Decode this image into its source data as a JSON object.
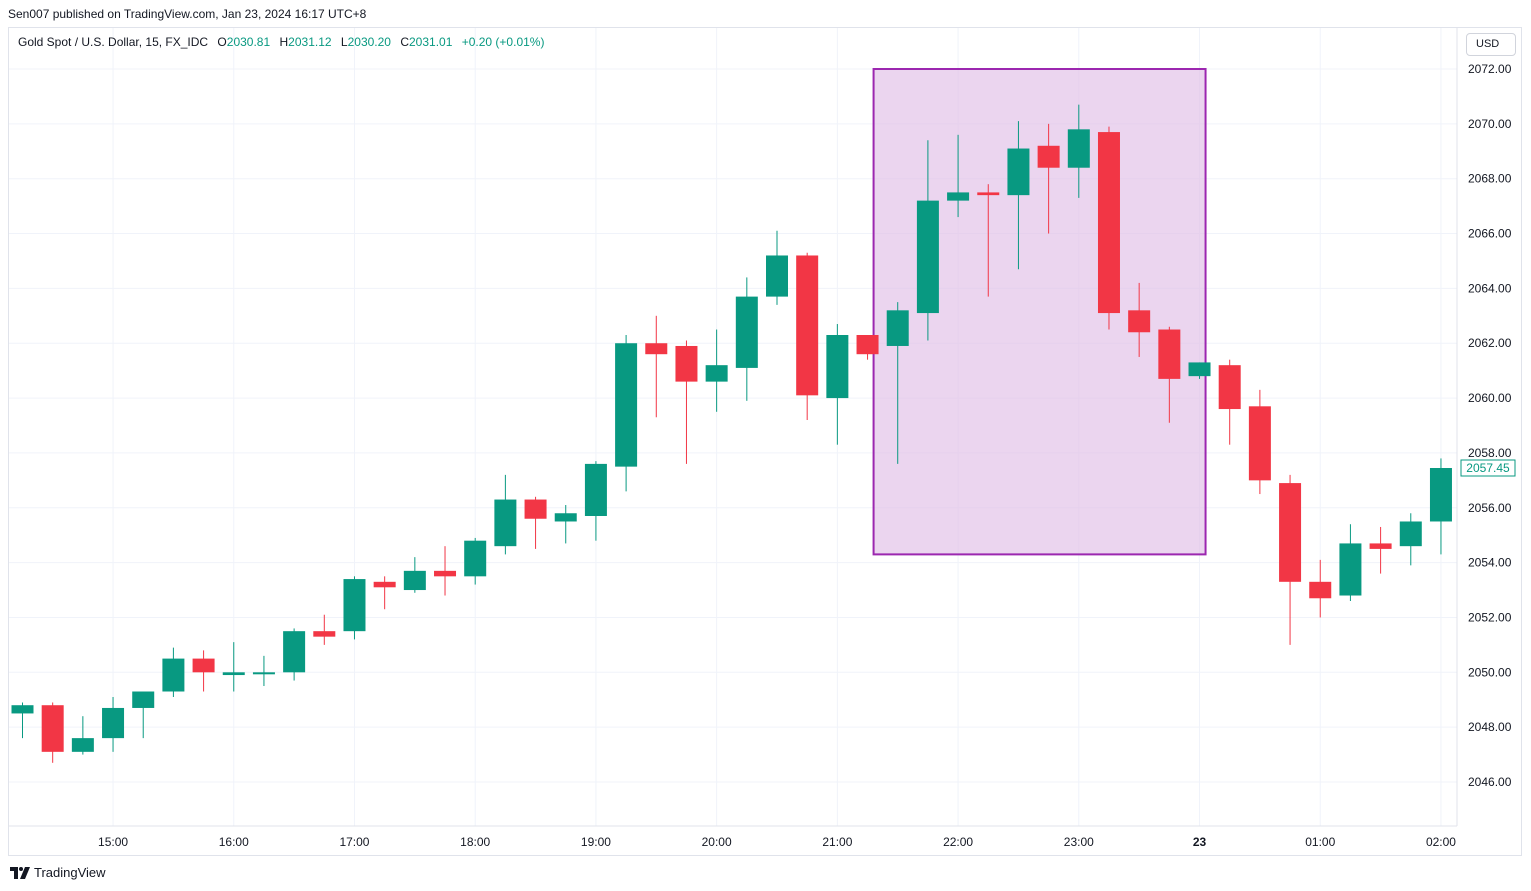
{
  "publisher": "Sen007 published on TradingView.com, Jan 23, 2024 16:17 UTC+8",
  "legend": {
    "symbol": "Gold Spot / U.S. Dollar, 15, FX_IDC",
    "o_label": "O",
    "o_value": "2030.81",
    "h_label": "H",
    "h_value": "2031.12",
    "l_label": "L",
    "l_value": "2030.20",
    "c_label": "C",
    "c_value": "2031.01",
    "change": "+0.20 (+0.01%)"
  },
  "currency": "USD",
  "footer": {
    "brand": "TradingView",
    "logo_icon": "tradingview-logo-icon"
  },
  "chart_data": {
    "type": "candlestick",
    "colors": {
      "up": "#089981",
      "down": "#f23645",
      "highlight_fill": "#e1bee7",
      "highlight_border": "#9c27b0"
    },
    "ylim": [
      2044.3,
      2073.3
    ],
    "y_ticks": [
      2046,
      2048,
      2050,
      2052,
      2054,
      2056,
      2058,
      2060,
      2062,
      2064,
      2066,
      2068,
      2070,
      2072
    ],
    "y_tick_labels": [
      "2046.00",
      "2048.00",
      "2050.00",
      "2052.00",
      "2054.00",
      "2056.00",
      "2058.00",
      "2060.00",
      "2062.00",
      "2064.00",
      "2066.00",
      "2068.00",
      "2070.00",
      "2072.00"
    ],
    "x_ticks": [
      {
        "index": 3,
        "label": "15:00",
        "bold": false
      },
      {
        "index": 7,
        "label": "16:00",
        "bold": false
      },
      {
        "index": 11,
        "label": "17:00",
        "bold": false
      },
      {
        "index": 15,
        "label": "18:00",
        "bold": false
      },
      {
        "index": 19,
        "label": "19:00",
        "bold": false
      },
      {
        "index": 23,
        "label": "20:00",
        "bold": false
      },
      {
        "index": 27,
        "label": "21:00",
        "bold": false
      },
      {
        "index": 31,
        "label": "22:00",
        "bold": false
      },
      {
        "index": 35,
        "label": "23:00",
        "bold": false
      },
      {
        "index": 39,
        "label": "23",
        "bold": true
      },
      {
        "index": 43,
        "label": "01:00",
        "bold": false
      },
      {
        "index": 47,
        "label": "02:00",
        "bold": false
      }
    ],
    "last_price_label": "2057.45",
    "highlight_box": {
      "x_start_index": 28.2,
      "x_end_index": 39.2,
      "y_top": 2072.0,
      "y_bottom": 2054.3
    },
    "candles": [
      {
        "o": 2048.5,
        "h": 2048.9,
        "l": 2047.6,
        "c": 2048.8
      },
      {
        "o": 2048.8,
        "h": 2048.9,
        "l": 2046.7,
        "c": 2047.1
      },
      {
        "o": 2047.1,
        "h": 2048.4,
        "l": 2047.0,
        "c": 2047.6
      },
      {
        "o": 2047.6,
        "h": 2049.1,
        "l": 2047.1,
        "c": 2048.7
      },
      {
        "o": 2048.7,
        "h": 2049.3,
        "l": 2047.6,
        "c": 2049.3
      },
      {
        "o": 2049.3,
        "h": 2050.9,
        "l": 2049.1,
        "c": 2050.5
      },
      {
        "o": 2050.5,
        "h": 2050.8,
        "l": 2049.3,
        "c": 2050.0
      },
      {
        "o": 2049.9,
        "h": 2051.1,
        "l": 2049.3,
        "c": 2050.0
      },
      {
        "o": 2050.0,
        "h": 2050.6,
        "l": 2049.5,
        "c": 2050.0
      },
      {
        "o": 2050.0,
        "h": 2051.6,
        "l": 2049.7,
        "c": 2051.5
      },
      {
        "o": 2051.5,
        "h": 2052.1,
        "l": 2051.0,
        "c": 2051.3
      },
      {
        "o": 2051.5,
        "h": 2053.5,
        "l": 2051.2,
        "c": 2053.4
      },
      {
        "o": 2053.3,
        "h": 2053.5,
        "l": 2052.3,
        "c": 2053.1
      },
      {
        "o": 2053.0,
        "h": 2054.2,
        "l": 2052.9,
        "c": 2053.7
      },
      {
        "o": 2053.7,
        "h": 2054.6,
        "l": 2052.8,
        "c": 2053.5
      },
      {
        "o": 2053.5,
        "h": 2054.9,
        "l": 2053.2,
        "c": 2054.8
      },
      {
        "o": 2054.6,
        "h": 2057.2,
        "l": 2054.3,
        "c": 2056.3
      },
      {
        "o": 2056.3,
        "h": 2056.4,
        "l": 2054.5,
        "c": 2055.6
      },
      {
        "o": 2055.5,
        "h": 2056.1,
        "l": 2054.7,
        "c": 2055.8
      },
      {
        "o": 2055.7,
        "h": 2057.7,
        "l": 2054.8,
        "c": 2057.6
      },
      {
        "o": 2057.5,
        "h": 2062.3,
        "l": 2056.6,
        "c": 2062.0
      },
      {
        "o": 2062.0,
        "h": 2063.0,
        "l": 2059.3,
        "c": 2061.6
      },
      {
        "o": 2061.9,
        "h": 2062.1,
        "l": 2057.6,
        "c": 2060.6
      },
      {
        "o": 2060.6,
        "h": 2062.5,
        "l": 2059.5,
        "c": 2061.2
      },
      {
        "o": 2061.1,
        "h": 2064.4,
        "l": 2059.9,
        "c": 2063.7
      },
      {
        "o": 2063.7,
        "h": 2066.1,
        "l": 2063.4,
        "c": 2065.2
      },
      {
        "o": 2065.2,
        "h": 2065.3,
        "l": 2059.2,
        "c": 2060.1
      },
      {
        "o": 2060.0,
        "h": 2062.7,
        "l": 2058.3,
        "c": 2062.3
      },
      {
        "o": 2062.3,
        "h": 2062.3,
        "l": 2061.4,
        "c": 2061.6
      },
      {
        "o": 2061.9,
        "h": 2063.5,
        "l": 2057.6,
        "c": 2063.2
      },
      {
        "o": 2063.1,
        "h": 2069.4,
        "l": 2062.1,
        "c": 2067.2
      },
      {
        "o": 2067.2,
        "h": 2069.6,
        "l": 2066.6,
        "c": 2067.5
      },
      {
        "o": 2067.5,
        "h": 2067.8,
        "l": 2063.7,
        "c": 2067.4
      },
      {
        "o": 2067.4,
        "h": 2070.1,
        "l": 2064.7,
        "c": 2069.1
      },
      {
        "o": 2069.2,
        "h": 2070.0,
        "l": 2066.0,
        "c": 2068.4
      },
      {
        "o": 2068.4,
        "h": 2070.7,
        "l": 2067.3,
        "c": 2069.8
      },
      {
        "o": 2069.7,
        "h": 2069.9,
        "l": 2062.5,
        "c": 2063.1
      },
      {
        "o": 2063.2,
        "h": 2064.2,
        "l": 2061.5,
        "c": 2062.4
      },
      {
        "o": 2062.5,
        "h": 2062.6,
        "l": 2059.1,
        "c": 2060.7
      },
      {
        "o": 2060.8,
        "h": 2061.3,
        "l": 2060.7,
        "c": 2061.3
      },
      {
        "o": 2061.2,
        "h": 2061.4,
        "l": 2058.3,
        "c": 2059.6
      },
      {
        "o": 2059.7,
        "h": 2060.3,
        "l": 2056.5,
        "c": 2057.0
      },
      {
        "o": 2056.9,
        "h": 2057.2,
        "l": 2051.0,
        "c": 2053.3
      },
      {
        "o": 2053.3,
        "h": 2054.1,
        "l": 2052.0,
        "c": 2052.7
      },
      {
        "o": 2052.8,
        "h": 2055.4,
        "l": 2052.6,
        "c": 2054.7
      },
      {
        "o": 2054.7,
        "h": 2055.3,
        "l": 2053.6,
        "c": 2054.5
      },
      {
        "o": 2054.6,
        "h": 2055.8,
        "l": 2053.9,
        "c": 2055.5
      },
      {
        "o": 2055.5,
        "h": 2057.8,
        "l": 2054.3,
        "c": 2057.45
      }
    ]
  }
}
